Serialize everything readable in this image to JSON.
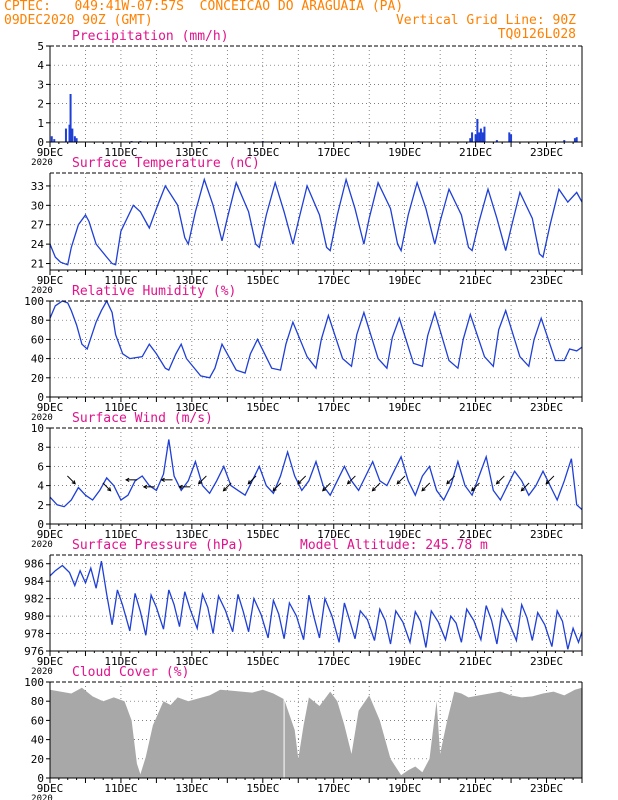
{
  "header": {
    "left_line1": "CPTEC:   049:41W-07:57S  CONCEICAO DO ARAGUAIA (PA)",
    "left_line2": "09DEC2020 90Z (GMT)",
    "right_line1": "Vertical Grid Line: 90Z",
    "right_line2": "TQ0126L028"
  },
  "colors": {
    "header": "#ff8000",
    "titles": "#e0138c",
    "series": "#1f3fd6",
    "cloud": "#a8a8a8",
    "frame": "#000000",
    "grid": "#555555"
  },
  "x_tick_labels": [
    "9DEC",
    "11DEC",
    "13DEC",
    "15DEC",
    "17DEC",
    "19DEC",
    "21DEC",
    "23DEC"
  ],
  "x_year_label": "2020",
  "chart_data": [
    {
      "id": "precip",
      "type": "bar",
      "title": "Precipitation (mm/h)",
      "ylim": [
        0,
        5
      ],
      "yticks": [
        0,
        1,
        2,
        3,
        4,
        5
      ],
      "x_day_range": [
        0,
        15
      ],
      "points": [
        [
          0.05,
          0.3
        ],
        [
          0.12,
          0.15
        ],
        [
          0.45,
          0.7
        ],
        [
          0.55,
          0.9
        ],
        [
          0.58,
          2.5
        ],
        [
          0.63,
          0.7
        ],
        [
          0.7,
          0.3
        ],
        [
          0.75,
          0.2
        ],
        [
          2.3,
          0.05
        ],
        [
          2.55,
          0.05
        ],
        [
          4.2,
          0.05
        ],
        [
          6.0,
          0.05
        ],
        [
          8.7,
          0.05
        ],
        [
          11.85,
          0.2
        ],
        [
          11.9,
          0.5
        ],
        [
          12.0,
          0.4
        ],
        [
          12.05,
          1.2
        ],
        [
          12.1,
          0.5
        ],
        [
          12.15,
          0.7
        ],
        [
          12.2,
          0.5
        ],
        [
          12.25,
          0.8
        ],
        [
          12.6,
          0.1
        ],
        [
          12.95,
          0.5
        ],
        [
          13.0,
          0.4
        ],
        [
          14.5,
          0.1
        ],
        [
          14.8,
          0.2
        ],
        [
          14.85,
          0.25
        ]
      ]
    },
    {
      "id": "temp",
      "type": "line",
      "title": "Surface Temperature (nC)",
      "ylim": [
        20,
        35
      ],
      "yticks": [
        21,
        24,
        27,
        30,
        33
      ],
      "x_day_range": [
        0,
        15
      ],
      "x": [
        0,
        0.15,
        0.3,
        0.5,
        0.6,
        0.8,
        1,
        1.1,
        1.3,
        1.6,
        1.75,
        1.85,
        2,
        2.35,
        2.55,
        2.8,
        3,
        3.25,
        3.6,
        3.8,
        3.9,
        4.1,
        4.35,
        4.6,
        4.85,
        5,
        5.25,
        5.6,
        5.8,
        5.9,
        6.1,
        6.35,
        6.6,
        6.85,
        7,
        7.25,
        7.6,
        7.8,
        7.9,
        8.1,
        8.35,
        8.6,
        8.85,
        9,
        9.25,
        9.6,
        9.8,
        9.9,
        10.1,
        10.35,
        10.6,
        10.85,
        11,
        11.25,
        11.6,
        11.8,
        11.9,
        12.1,
        12.35,
        12.6,
        12.85,
        13,
        13.25,
        13.6,
        13.8,
        13.9,
        14.1,
        14.35,
        14.6,
        14.85,
        15
      ],
      "values": [
        24,
        22,
        21.2,
        20.8,
        23.5,
        27,
        28.5,
        27.5,
        24,
        22,
        21,
        20.8,
        26,
        30,
        29,
        26.5,
        29.5,
        33,
        30,
        25,
        24,
        29,
        34,
        30,
        24.5,
        28,
        33.5,
        29,
        24,
        23.5,
        28.5,
        33.5,
        29,
        24,
        27.5,
        33,
        28.5,
        23.5,
        23,
        28.5,
        34,
        29.5,
        24,
        28,
        33.5,
        29.5,
        24,
        23,
        28.5,
        33.5,
        29.5,
        24,
        27.5,
        32.5,
        28.5,
        23.5,
        23,
        27.5,
        32.5,
        28,
        23,
        26.5,
        32,
        28,
        22.5,
        22,
        27,
        32.5,
        30.5,
        32,
        30.5
      ]
    },
    {
      "id": "rh",
      "type": "line",
      "title": "Relative Humidity (%)",
      "ylim": [
        0,
        100
      ],
      "yticks": [
        0,
        20,
        40,
        60,
        80,
        100
      ],
      "x_day_range": [
        0,
        15
      ],
      "x": [
        0,
        0.15,
        0.35,
        0.5,
        0.6,
        0.75,
        0.9,
        1.05,
        1.3,
        1.45,
        1.6,
        1.75,
        1.85,
        2.05,
        2.25,
        2.6,
        2.8,
        3,
        3.25,
        3.35,
        3.55,
        3.7,
        3.85,
        4.25,
        4.5,
        4.65,
        4.85,
        5.25,
        5.5,
        5.65,
        5.85,
        6.25,
        6.5,
        6.65,
        6.85,
        7.25,
        7.5,
        7.65,
        7.85,
        8.25,
        8.5,
        8.65,
        8.85,
        9.25,
        9.5,
        9.65,
        9.85,
        10.25,
        10.5,
        10.65,
        10.85,
        11.25,
        11.5,
        11.65,
        11.85,
        12.25,
        12.5,
        12.65,
        12.85,
        13.25,
        13.5,
        13.65,
        13.85,
        14.25,
        14.5,
        14.65,
        14.85,
        15
      ],
      "values": [
        82,
        95,
        100,
        98,
        90,
        75,
        55,
        50,
        78,
        90,
        100,
        88,
        65,
        45,
        40,
        42,
        55,
        45,
        30,
        28,
        45,
        55,
        40,
        22,
        20,
        30,
        55,
        28,
        25,
        45,
        60,
        30,
        28,
        55,
        78,
        42,
        30,
        60,
        85,
        40,
        32,
        65,
        88,
        40,
        30,
        62,
        82,
        35,
        32,
        64,
        88,
        38,
        30,
        60,
        86,
        42,
        32,
        70,
        90,
        42,
        32,
        60,
        82,
        38,
        38,
        50,
        48,
        52
      ]
    },
    {
      "id": "wind",
      "type": "line",
      "title": "Surface Wind (m/s)",
      "ylim": [
        0,
        10
      ],
      "yticks": [
        0,
        2,
        4,
        6,
        8,
        10
      ],
      "x_day_range": [
        0,
        15
      ],
      "x": [
        0,
        0.2,
        0.4,
        0.6,
        0.8,
        1,
        1.2,
        1.4,
        1.6,
        1.8,
        2,
        2.2,
        2.4,
        2.6,
        2.8,
        3,
        3.2,
        3.35,
        3.5,
        3.7,
        3.9,
        4.1,
        4.3,
        4.5,
        4.7,
        4.9,
        5.1,
        5.3,
        5.5,
        5.7,
        5.9,
        6.1,
        6.3,
        6.5,
        6.7,
        6.9,
        7.1,
        7.3,
        7.5,
        7.7,
        7.9,
        8.1,
        8.3,
        8.5,
        8.7,
        8.9,
        9.1,
        9.3,
        9.5,
        9.7,
        9.9,
        10.1,
        10.3,
        10.5,
        10.7,
        10.9,
        11.1,
        11.3,
        11.5,
        11.7,
        11.9,
        12.1,
        12.3,
        12.5,
        12.7,
        12.9,
        13.1,
        13.3,
        13.5,
        13.7,
        13.9,
        14.1,
        14.3,
        14.5,
        14.7,
        14.85,
        15
      ],
      "values": [
        2.8,
        2.0,
        1.8,
        2.5,
        3.8,
        3.0,
        2.5,
        3.5,
        4.8,
        4.0,
        2.5,
        3.0,
        4.5,
        5.0,
        4.0,
        3.5,
        5.2,
        8.8,
        5.0,
        3.5,
        4.5,
        6.5,
        4.0,
        3.2,
        4.5,
        6.0,
        4.0,
        3.5,
        3.0,
        4.5,
        6.0,
        4.0,
        3.2,
        5.0,
        7.5,
        5.0,
        3.5,
        4.5,
        6.5,
        4.0,
        3.0,
        4.5,
        6.0,
        4.5,
        3.5,
        5.0,
        6.5,
        4.5,
        4.0,
        5.5,
        7.0,
        4.5,
        3.0,
        5.0,
        6.0,
        3.5,
        2.5,
        4.0,
        6.5,
        4.0,
        3.0,
        5.0,
        7.0,
        3.5,
        2.5,
        4.0,
        5.5,
        4.5,
        3.0,
        4.0,
        5.5,
        4.0,
        2.5,
        4.5,
        6.8,
        2.0,
        1.5
      ],
      "arrows": [
        {
          "day": 0.6,
          "dir": "SE"
        },
        {
          "day": 1.6,
          "dir": "SE"
        },
        {
          "day": 2.3,
          "dir": "W"
        },
        {
          "day": 2.8,
          "dir": "W"
        },
        {
          "day": 3.3,
          "dir": "W"
        },
        {
          "day": 3.8,
          "dir": "W"
        },
        {
          "day": 4.3,
          "dir": "SW"
        },
        {
          "day": 5.0,
          "dir": "SW"
        },
        {
          "day": 5.7,
          "dir": "SW"
        },
        {
          "day": 6.4,
          "dir": "SW"
        },
        {
          "day": 7.1,
          "dir": "SW"
        },
        {
          "day": 7.8,
          "dir": "SW"
        },
        {
          "day": 8.5,
          "dir": "SW"
        },
        {
          "day": 9.2,
          "dir": "SW"
        },
        {
          "day": 9.9,
          "dir": "SW"
        },
        {
          "day": 10.6,
          "dir": "SW"
        },
        {
          "day": 11.3,
          "dir": "SW"
        },
        {
          "day": 12.0,
          "dir": "SW"
        },
        {
          "day": 12.7,
          "dir": "SW"
        },
        {
          "day": 13.4,
          "dir": "SW"
        },
        {
          "day": 14.1,
          "dir": "SW"
        }
      ]
    },
    {
      "id": "pres",
      "type": "line",
      "title": "Surface Pressure (hPa)",
      "title2": "Model Altitude: 245.78 m",
      "ylim": [
        976,
        987
      ],
      "yticks": [
        976,
        978,
        980,
        982,
        984,
        986
      ],
      "x_day_range": [
        0,
        15
      ],
      "x": [
        0,
        0.15,
        0.35,
        0.55,
        0.7,
        0.85,
        1,
        1.15,
        1.3,
        1.45,
        1.6,
        1.75,
        1.9,
        2.05,
        2.25,
        2.4,
        2.55,
        2.7,
        2.85,
        3,
        3.2,
        3.35,
        3.5,
        3.65,
        3.8,
        3.95,
        4.15,
        4.3,
        4.45,
        4.6,
        4.75,
        4.95,
        5.15,
        5.3,
        5.45,
        5.6,
        5.75,
        5.95,
        6.15,
        6.3,
        6.45,
        6.6,
        6.75,
        6.95,
        7.15,
        7.3,
        7.45,
        7.6,
        7.75,
        7.95,
        8.15,
        8.3,
        8.45,
        8.6,
        8.75,
        8.95,
        9.15,
        9.3,
        9.45,
        9.6,
        9.75,
        9.95,
        10.15,
        10.3,
        10.45,
        10.6,
        10.75,
        10.95,
        11.15,
        11.3,
        11.45,
        11.6,
        11.75,
        11.95,
        12.15,
        12.3,
        12.45,
        12.6,
        12.75,
        12.95,
        13.15,
        13.3,
        13.45,
        13.6,
        13.75,
        13.95,
        14.15,
        14.3,
        14.45,
        14.6,
        14.75,
        14.9,
        15
      ],
      "values": [
        984.6,
        985.2,
        985.8,
        985,
        983.5,
        985.2,
        983.8,
        985.5,
        983.2,
        986.3,
        982.5,
        979,
        983,
        981.2,
        978.3,
        982.6,
        980.5,
        977.8,
        982.4,
        981,
        978.5,
        983,
        981.3,
        978.8,
        982.8,
        980.8,
        978.6,
        982.5,
        981,
        978,
        982.3,
        980.6,
        978.2,
        982.5,
        980.5,
        978.2,
        982,
        980.2,
        977.5,
        981.8,
        980.2,
        977.4,
        981.5,
        980,
        977.3,
        982.4,
        979.8,
        977.5,
        982,
        980,
        977,
        981.5,
        979.5,
        977.4,
        980.6,
        979.6,
        977.2,
        980.8,
        979.5,
        976.8,
        980.6,
        979.3,
        977,
        980.5,
        979.4,
        976.4,
        980.6,
        979.3,
        977.3,
        980,
        979.2,
        977,
        980.8,
        979.5,
        977.3,
        981.2,
        979.5,
        976.8,
        980.8,
        979.2,
        977.2,
        981.3,
        979.8,
        977.2,
        980.4,
        979,
        976.5,
        980.6,
        979.4,
        976.2,
        978.6,
        977,
        978.2
      ]
    },
    {
      "id": "cloud",
      "type": "area",
      "title": "Cloud Cover (%)",
      "ylim": [
        0,
        100
      ],
      "yticks": [
        0,
        20,
        40,
        60,
        80,
        100
      ],
      "x_day_range": [
        0,
        15
      ],
      "x": [
        0,
        0.3,
        0.6,
        0.9,
        1.2,
        1.5,
        1.8,
        2.1,
        2.3,
        2.45,
        2.55,
        2.7,
        2.9,
        3.2,
        3.4,
        3.6,
        3.9,
        4.2,
        4.5,
        4.8,
        5.1,
        5.4,
        5.7,
        6.0,
        6.3,
        6.6,
        6.9,
        7.0,
        7.15,
        7.3,
        7.6,
        7.9,
        8.1,
        8.3,
        8.5,
        8.7,
        9.0,
        9.3,
        9.6,
        9.9,
        10.1,
        10.3,
        10.5,
        10.7,
        10.9,
        11.0,
        11.2,
        11.4,
        11.6,
        11.8,
        12.1,
        12.4,
        12.7,
        13.0,
        13.3,
        13.6,
        13.9,
        14.2,
        14.5,
        14.8,
        15
      ],
      "values": [
        92,
        90,
        88,
        94,
        85,
        80,
        84,
        80,
        60,
        15,
        4,
        22,
        55,
        80,
        76,
        84,
        80,
        83,
        86,
        92,
        91,
        90,
        89,
        92,
        88,
        82,
        50,
        20,
        55,
        84,
        75,
        90,
        80,
        55,
        25,
        70,
        86,
        60,
        20,
        3,
        8,
        12,
        6,
        20,
        80,
        25,
        60,
        90,
        88,
        84,
        86,
        88,
        90,
        86,
        84,
        85,
        88,
        90,
        86,
        92,
        94
      ]
    }
  ]
}
